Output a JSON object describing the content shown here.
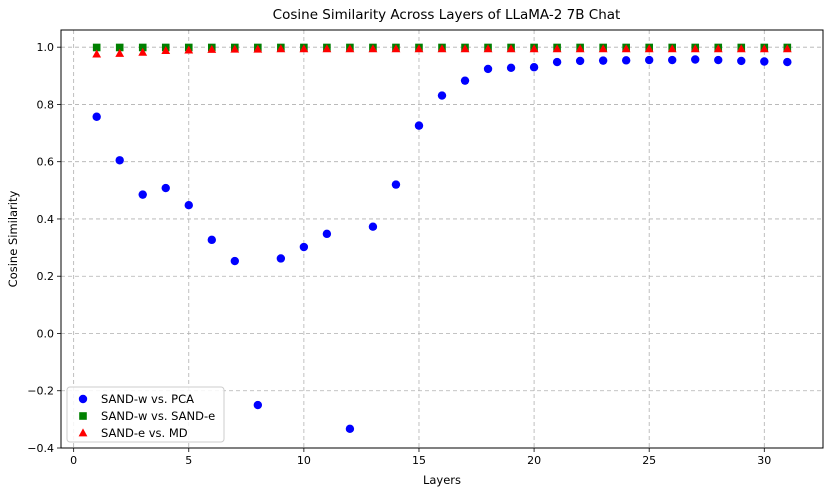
{
  "chart_data": {
    "type": "scatter",
    "title": "Cosine Similarity Across Layers of LLaMA-2 7B Chat",
    "xlabel": "Layers",
    "ylabel": "Cosine Similarity",
    "xlim": [
      -0.55,
      32.55
    ],
    "ylim": [
      -0.4,
      1.06
    ],
    "xticks": [
      0,
      5,
      10,
      15,
      20,
      25,
      30
    ],
    "yticks": [
      -0.4,
      -0.2,
      0.0,
      0.2,
      0.4,
      0.6,
      0.8,
      1.0
    ],
    "xtick_labels": [
      "0",
      "5",
      "10",
      "15",
      "20",
      "25",
      "30"
    ],
    "ytick_labels": [
      "−0.4",
      "−0.2",
      "0.0",
      "0.2",
      "0.4",
      "0.6",
      "0.8",
      "1.0"
    ],
    "grid": true,
    "legend_position": "bottom-left",
    "x": [
      1,
      2,
      3,
      4,
      5,
      6,
      7,
      8,
      9,
      10,
      11,
      12,
      13,
      14,
      15,
      16,
      17,
      18,
      19,
      20,
      21,
      22,
      23,
      24,
      25,
      26,
      27,
      28,
      29,
      30,
      31
    ],
    "series": [
      {
        "name": "SAND-w vs. PCA",
        "marker": "circle",
        "color": "#0000ff",
        "values": [
          0.757,
          0.605,
          0.485,
          0.508,
          0.448,
          0.327,
          0.253,
          -0.25,
          0.262,
          0.302,
          0.348,
          -0.333,
          0.373,
          0.52,
          0.726,
          0.831,
          0.883,
          0.924,
          0.928,
          0.93,
          0.948,
          0.952,
          0.953,
          0.954,
          0.955,
          0.955,
          0.957,
          0.955,
          0.952,
          0.95,
          0.948
        ]
      },
      {
        "name": "SAND-w vs. SAND-e",
        "marker": "square",
        "color": "#008000",
        "values": [
          0.999,
          0.999,
          0.999,
          0.999,
          0.999,
          0.999,
          0.999,
          0.999,
          0.999,
          0.999,
          0.999,
          0.999,
          0.999,
          0.999,
          0.999,
          0.999,
          0.999,
          0.999,
          0.999,
          0.999,
          0.999,
          0.999,
          0.999,
          0.999,
          0.999,
          0.999,
          0.999,
          0.999,
          0.999,
          0.999,
          0.999
        ]
      },
      {
        "name": "SAND-e vs. MD",
        "marker": "triangle",
        "color": "#ff0000",
        "values": [
          0.976,
          0.978,
          0.982,
          0.988,
          0.99,
          0.992,
          0.993,
          0.993,
          0.994,
          0.994,
          0.994,
          0.994,
          0.994,
          0.994,
          0.994,
          0.994,
          0.994,
          0.994,
          0.994,
          0.994,
          0.994,
          0.994,
          0.994,
          0.994,
          0.994,
          0.994,
          0.994,
          0.994,
          0.994,
          0.994,
          0.994
        ]
      }
    ]
  }
}
